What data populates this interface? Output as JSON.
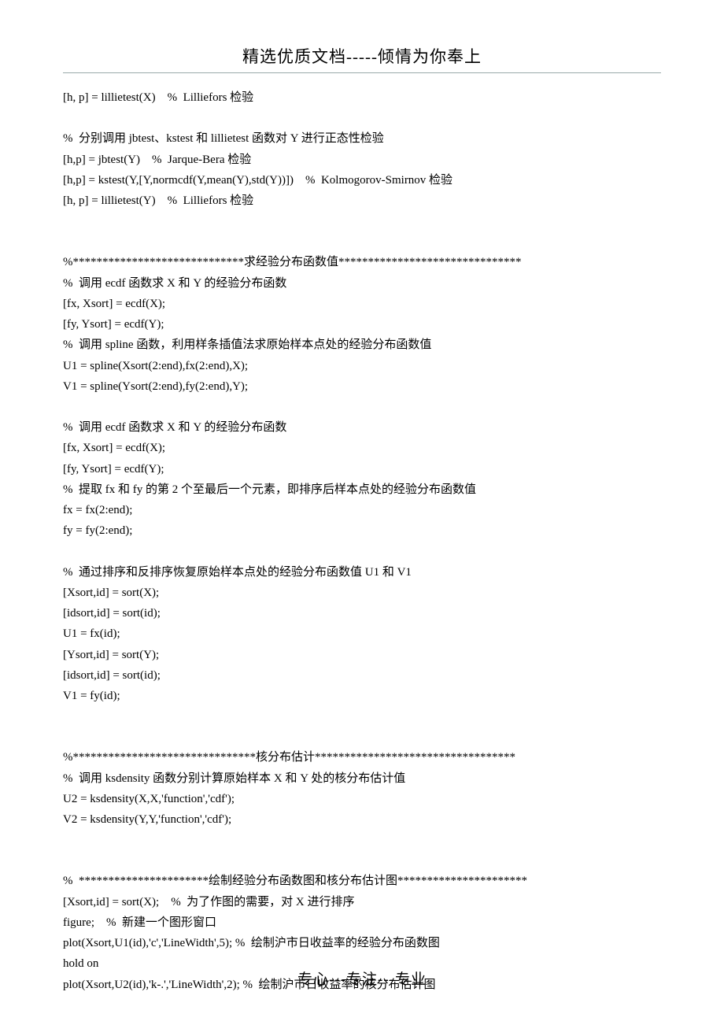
{
  "header": "精选优质文档-----倾情为你奉上",
  "footer": "专心---专注---专业",
  "lines": [
    "[h, p] = lillietest(X)    %  Lilliefors 检验",
    "",
    "%  分别调用 jbtest、kstest 和 lillietest 函数对 Y 进行正态性检验",
    "[h,p] = jbtest(Y)    %  Jarque-Bera 检验",
    "[h,p] = kstest(Y,[Y,normcdf(Y,mean(Y),std(Y))])    %  Kolmogorov-Smirnov 检验",
    "[h, p] = lillietest(Y)    %  Lilliefors 检验",
    "",
    "",
    "%*****************************求经验分布函数值*******************************",
    "%  调用 ecdf 函数求 X 和 Y 的经验分布函数",
    "[fx, Xsort] = ecdf(X);",
    "[fy, Ysort] = ecdf(Y);",
    "%  调用 spline 函数，利用样条插值法求原始样本点处的经验分布函数值",
    "U1 = spline(Xsort(2:end),fx(2:end),X);",
    "V1 = spline(Ysort(2:end),fy(2:end),Y);",
    "",
    "%  调用 ecdf 函数求 X 和 Y 的经验分布函数",
    "[fx, Xsort] = ecdf(X);",
    "[fy, Ysort] = ecdf(Y);",
    "%  提取 fx 和 fy 的第 2 个至最后一个元素，即排序后样本点处的经验分布函数值",
    "fx = fx(2:end);",
    "fy = fy(2:end);",
    "",
    "%  通过排序和反排序恢复原始样本点处的经验分布函数值 U1 和 V1",
    "[Xsort,id] = sort(X);",
    "[idsort,id] = sort(id);",
    "U1 = fx(id);",
    "[Ysort,id] = sort(Y);",
    "[idsort,id] = sort(id);",
    "V1 = fy(id);",
    "",
    "",
    "%*******************************核分布估计**********************************",
    "%  调用 ksdensity 函数分别计算原始样本 X 和 Y 处的核分布估计值",
    "U2 = ksdensity(X,X,'function','cdf');",
    "V2 = ksdensity(Y,Y,'function','cdf');",
    "",
    "",
    "%  **********************绘制经验分布函数图和核分布估计图**********************",
    "[Xsort,id] = sort(X);    %  为了作图的需要，对 X 进行排序",
    "figure;    %  新建一个图形窗口",
    "plot(Xsort,U1(id),'c','LineWidth',5); %  绘制沪市日收益率的经验分布函数图",
    "hold on",
    "plot(Xsort,U2(id),'k-.','LineWidth',2); %  绘制沪市日收益率的核分布估计图"
  ]
}
